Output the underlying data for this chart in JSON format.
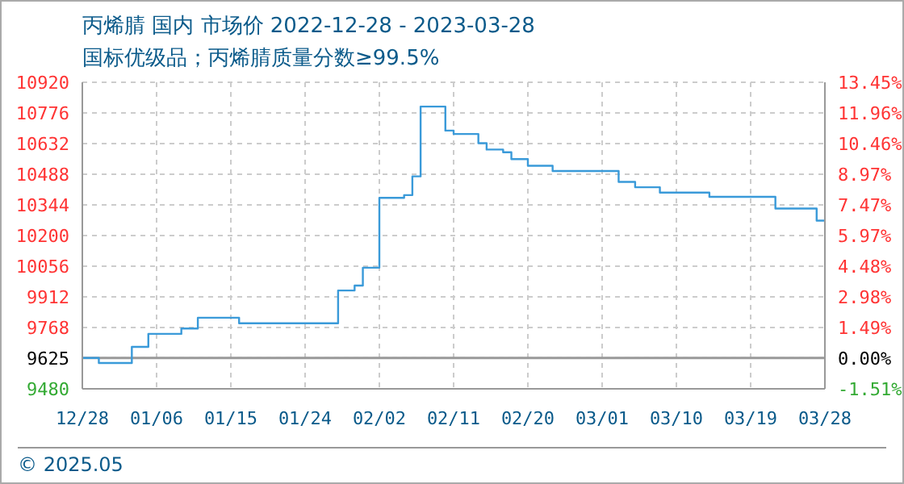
{
  "chart_data": {
    "type": "step",
    "title": "丙烯腈 国内 市场价 2022-12-28 - 2023-03-28",
    "subtitle": "国标优级品；丙烯腈质量分数≥99.5%",
    "annotations": [
      "© 2025.05"
    ],
    "x": [
      "2022-12-28",
      "2022-12-30",
      "2023-01-03",
      "2023-01-05",
      "2023-01-09",
      "2023-01-11",
      "2023-01-16",
      "2023-01-28",
      "2023-01-30",
      "2023-01-31",
      "2023-02-02",
      "2023-02-05",
      "2023-02-06",
      "2023-02-07",
      "2023-02-10",
      "2023-02-11",
      "2023-02-14",
      "2023-02-15",
      "2023-02-17",
      "2023-02-18",
      "2023-02-20",
      "2023-02-23",
      "2023-03-03",
      "2023-03-05",
      "2023-03-08",
      "2023-03-14",
      "2023-03-22",
      "2023-03-27",
      "2023-03-28"
    ],
    "series": [
      {
        "color": "#3a9ad9",
        "values": [
          9625,
          9601,
          9677,
          9738,
          9763,
          9814,
          9788,
          9942,
          9965,
          10049,
          10377,
          10390,
          10478,
          10806,
          10693,
          10677,
          10634,
          10604,
          10591,
          10559,
          10528,
          10503,
          10452,
          10427,
          10402,
          10382,
          10327,
          10270,
          10270
        ]
      }
    ],
    "xlim": [
      "2022-12-28",
      "2023-03-28"
    ],
    "xticks": [
      {
        "value": "2022-12-28",
        "label": "12/28"
      },
      {
        "value": "2023-01-06",
        "label": "01/06"
      },
      {
        "value": "2023-01-15",
        "label": "01/15"
      },
      {
        "value": "2023-01-24",
        "label": "01/24"
      },
      {
        "value": "2023-02-02",
        "label": "02/02"
      },
      {
        "value": "2023-02-11",
        "label": "02/11"
      },
      {
        "value": "2023-02-20",
        "label": "02/20"
      },
      {
        "value": "2023-03-01",
        "label": "03/01"
      },
      {
        "value": "2023-03-10",
        "label": "03/10"
      },
      {
        "value": "2023-03-19",
        "label": "03/19"
      },
      {
        "value": "2023-03-28",
        "label": "03/28"
      }
    ],
    "ylim": [
      9480,
      10920
    ],
    "yticks": [
      9480,
      9625,
      9768,
      9912,
      10056,
      10200,
      10344,
      10488,
      10632,
      10776,
      10920
    ],
    "y2lim": [
      -1.51,
      13.45
    ],
    "y2ticks": [
      {
        "value": -1.51,
        "label": "-1.51%"
      },
      {
        "value": 0,
        "label": "0.00%"
      },
      {
        "value": 1.49,
        "label": "1.49%"
      },
      {
        "value": 2.98,
        "label": "2.98%"
      },
      {
        "value": 4.48,
        "label": "4.48%"
      },
      {
        "value": 5.97,
        "label": "5.97%"
      },
      {
        "value": 7.47,
        "label": "7.47%"
      },
      {
        "value": 8.97,
        "label": "8.97%"
      },
      {
        "value": 10.46,
        "label": "10.46%"
      },
      {
        "value": 11.96,
        "label": "11.96%"
      },
      {
        "value": 13.45,
        "label": "13.45%"
      }
    ],
    "ref_lines": [
      {
        "axis": "y",
        "value": 9625,
        "color": "#999999"
      }
    ],
    "grid": true,
    "marker": "none",
    "line_style": "solid"
  }
}
